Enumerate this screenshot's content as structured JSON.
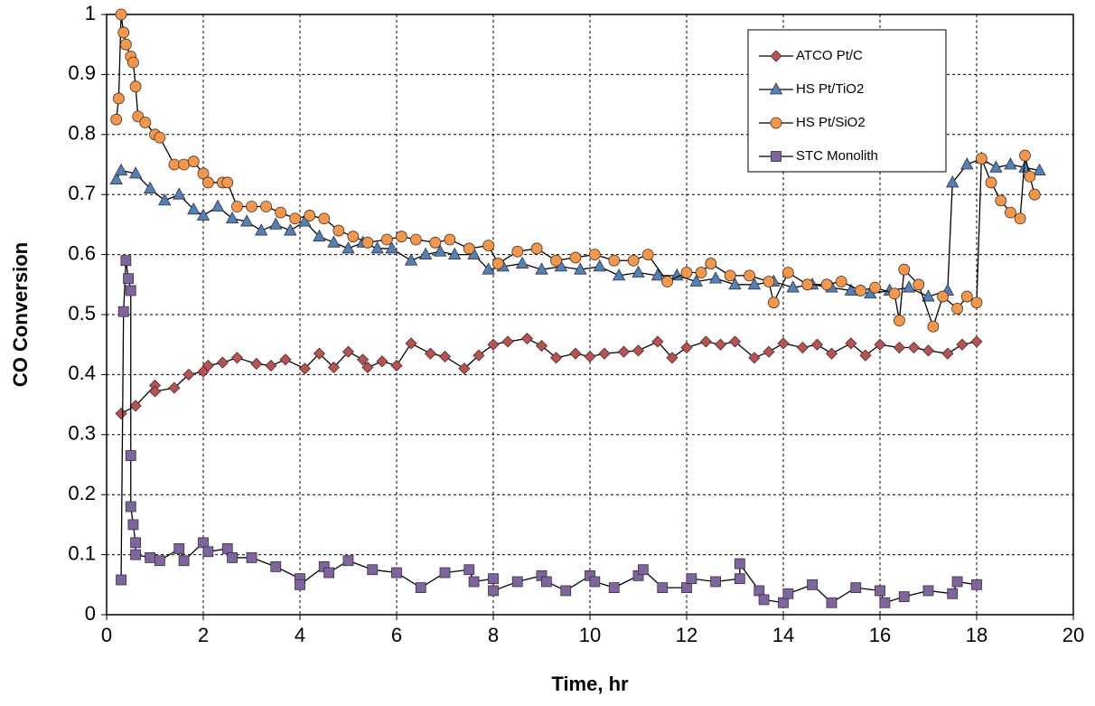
{
  "chart_data": {
    "type": "line",
    "x_label": "Time, hr",
    "y_label": "CO Conversion",
    "xlim": [
      0,
      20
    ],
    "xticks": [
      0,
      2,
      4,
      6,
      8,
      10,
      12,
      14,
      16,
      18,
      20
    ],
    "ylim": [
      0,
      1
    ],
    "yticks": [
      0,
      0.1,
      0.2,
      0.3,
      0.4,
      0.5,
      0.6,
      0.7,
      0.8,
      0.9,
      1
    ],
    "grid": true,
    "legend": "upper right",
    "series": [
      {
        "name": "ATCO Pt/C",
        "color": "#c0504d",
        "marker": "diamond",
        "x": [
          0.3,
          0.6,
          1.0,
          1.0,
          1.4,
          1.7,
          2.0,
          2.1,
          2.4,
          2.7,
          3.1,
          3.4,
          3.7,
          4.1,
          4.4,
          4.7,
          5.0,
          5.3,
          5.4,
          5.7,
          6.0,
          6.3,
          6.7,
          7.0,
          7.4,
          7.7,
          8.0,
          8.3,
          8.7,
          9.0,
          9.3,
          9.7,
          10.0,
          10.3,
          10.7,
          11.0,
          11.4,
          11.7,
          12.0,
          12.4,
          12.7,
          13.0,
          13.4,
          13.7,
          14.0,
          14.4,
          14.7,
          15.0,
          15.4,
          15.7,
          16.0,
          16.4,
          16.7,
          17.0,
          17.4,
          17.7,
          18.0
        ],
        "values": [
          0.335,
          0.348,
          0.382,
          0.372,
          0.378,
          0.4,
          0.405,
          0.415,
          0.42,
          0.428,
          0.418,
          0.415,
          0.425,
          0.41,
          0.435,
          0.412,
          0.438,
          0.425,
          0.412,
          0.422,
          0.415,
          0.452,
          0.435,
          0.43,
          0.41,
          0.432,
          0.45,
          0.455,
          0.46,
          0.448,
          0.428,
          0.435,
          0.43,
          0.435,
          0.438,
          0.44,
          0.455,
          0.428,
          0.445,
          0.455,
          0.45,
          0.455,
          0.428,
          0.438,
          0.452,
          0.445,
          0.45,
          0.435,
          0.452,
          0.432,
          0.45,
          0.445,
          0.445,
          0.44,
          0.435,
          0.45,
          0.455
        ]
      },
      {
        "name": "HS Pt/TiO2",
        "color": "#4f81bd",
        "marker": "triangle",
        "x": [
          0.2,
          0.3,
          0.6,
          0.9,
          1.2,
          1.5,
          1.8,
          2.0,
          2.3,
          2.6,
          2.9,
          3.2,
          3.5,
          3.8,
          4.1,
          4.4,
          4.7,
          5.0,
          5.3,
          5.6,
          5.9,
          6.3,
          6.6,
          6.9,
          7.2,
          7.6,
          7.9,
          8.2,
          8.6,
          9.0,
          9.4,
          9.8,
          10.2,
          10.6,
          11.0,
          11.4,
          11.8,
          12.2,
          12.6,
          13.0,
          13.4,
          13.8,
          14.2,
          14.6,
          15.0,
          15.4,
          15.8,
          16.2,
          16.6,
          17.0,
          17.4,
          17.5,
          17.8,
          18.1,
          18.4,
          18.7,
          19.0,
          19.3
        ],
        "values": [
          0.725,
          0.74,
          0.735,
          0.71,
          0.69,
          0.7,
          0.675,
          0.665,
          0.68,
          0.66,
          0.655,
          0.64,
          0.65,
          0.64,
          0.655,
          0.63,
          0.62,
          0.61,
          0.62,
          0.61,
          0.61,
          0.59,
          0.6,
          0.605,
          0.6,
          0.6,
          0.575,
          0.58,
          0.585,
          0.575,
          0.58,
          0.575,
          0.58,
          0.565,
          0.57,
          0.565,
          0.565,
          0.555,
          0.56,
          0.55,
          0.55,
          0.555,
          0.545,
          0.55,
          0.545,
          0.54,
          0.535,
          0.54,
          0.545,
          0.53,
          0.54,
          0.72,
          0.75,
          0.76,
          0.745,
          0.75,
          0.745,
          0.74
        ]
      },
      {
        "name": "HS Pt/SiO2",
        "color": "#f79646",
        "marker": "circle",
        "x": [
          0.2,
          0.25,
          0.3,
          0.35,
          0.4,
          0.5,
          0.55,
          0.6,
          0.65,
          0.8,
          1.0,
          1.1,
          1.4,
          1.6,
          1.8,
          2.0,
          2.1,
          2.4,
          2.5,
          2.7,
          3.0,
          3.3,
          3.6,
          3.9,
          4.2,
          4.5,
          4.8,
          5.1,
          5.4,
          5.8,
          6.1,
          6.4,
          6.8,
          7.1,
          7.5,
          7.9,
          8.1,
          8.5,
          8.9,
          9.3,
          9.7,
          10.1,
          10.5,
          10.9,
          11.2,
          11.6,
          12.0,
          12.3,
          12.5,
          12.9,
          13.3,
          13.7,
          13.8,
          14.1,
          14.5,
          14.9,
          15.2,
          15.6,
          15.9,
          16.3,
          16.4,
          16.5,
          16.8,
          17.1,
          17.3,
          17.6,
          17.8,
          18.0,
          18.1,
          18.3,
          18.5,
          18.7,
          18.9,
          19.0,
          19.1,
          19.2
        ],
        "values": [
          0.825,
          0.86,
          1.0,
          0.97,
          0.95,
          0.93,
          0.92,
          0.88,
          0.83,
          0.82,
          0.8,
          0.795,
          0.75,
          0.75,
          0.755,
          0.735,
          0.72,
          0.72,
          0.72,
          0.68,
          0.68,
          0.68,
          0.67,
          0.66,
          0.665,
          0.66,
          0.64,
          0.63,
          0.62,
          0.625,
          0.63,
          0.625,
          0.62,
          0.625,
          0.61,
          0.615,
          0.585,
          0.605,
          0.61,
          0.59,
          0.595,
          0.6,
          0.59,
          0.59,
          0.6,
          0.555,
          0.57,
          0.57,
          0.585,
          0.565,
          0.565,
          0.555,
          0.52,
          0.57,
          0.55,
          0.55,
          0.555,
          0.54,
          0.545,
          0.535,
          0.49,
          0.575,
          0.55,
          0.48,
          0.53,
          0.51,
          0.53,
          0.52,
          0.76,
          0.72,
          0.69,
          0.67,
          0.66,
          0.765,
          0.73,
          0.7
        ]
      },
      {
        "name": "STC Monolith",
        "color": "#8064a2",
        "marker": "square",
        "x": [
          0.3,
          0.35,
          0.4,
          0.45,
          0.5,
          0.5,
          0.5,
          0.55,
          0.6,
          0.6,
          0.9,
          1.1,
          1.5,
          1.6,
          2.0,
          2.1,
          2.5,
          2.6,
          3.0,
          3.5,
          4.0,
          4.0,
          4.5,
          4.6,
          5.0,
          5.5,
          6.0,
          6.5,
          7.0,
          7.5,
          7.6,
          8.0,
          8.0,
          8.5,
          9.0,
          9.1,
          9.5,
          10.0,
          10.1,
          10.5,
          11.0,
          11.1,
          11.5,
          12.0,
          12.1,
          12.6,
          13.1,
          13.1,
          13.5,
          13.6,
          14.0,
          14.1,
          14.6,
          15.0,
          15.5,
          16.0,
          16.1,
          16.5,
          17.0,
          17.5,
          17.6,
          18.0
        ],
        "values": [
          0.058,
          0.505,
          0.59,
          0.56,
          0.54,
          0.265,
          0.18,
          0.15,
          0.12,
          0.1,
          0.095,
          0.09,
          0.11,
          0.09,
          0.12,
          0.105,
          0.11,
          0.095,
          0.095,
          0.08,
          0.06,
          0.05,
          0.08,
          0.07,
          0.09,
          0.075,
          0.07,
          0.045,
          0.07,
          0.075,
          0.055,
          0.06,
          0.04,
          0.055,
          0.065,
          0.055,
          0.04,
          0.065,
          0.055,
          0.045,
          0.065,
          0.075,
          0.045,
          0.045,
          0.06,
          0.055,
          0.06,
          0.085,
          0.04,
          0.025,
          0.02,
          0.035,
          0.05,
          0.02,
          0.045,
          0.04,
          0.02,
          0.03,
          0.04,
          0.035,
          0.055,
          0.05
        ]
      }
    ]
  }
}
